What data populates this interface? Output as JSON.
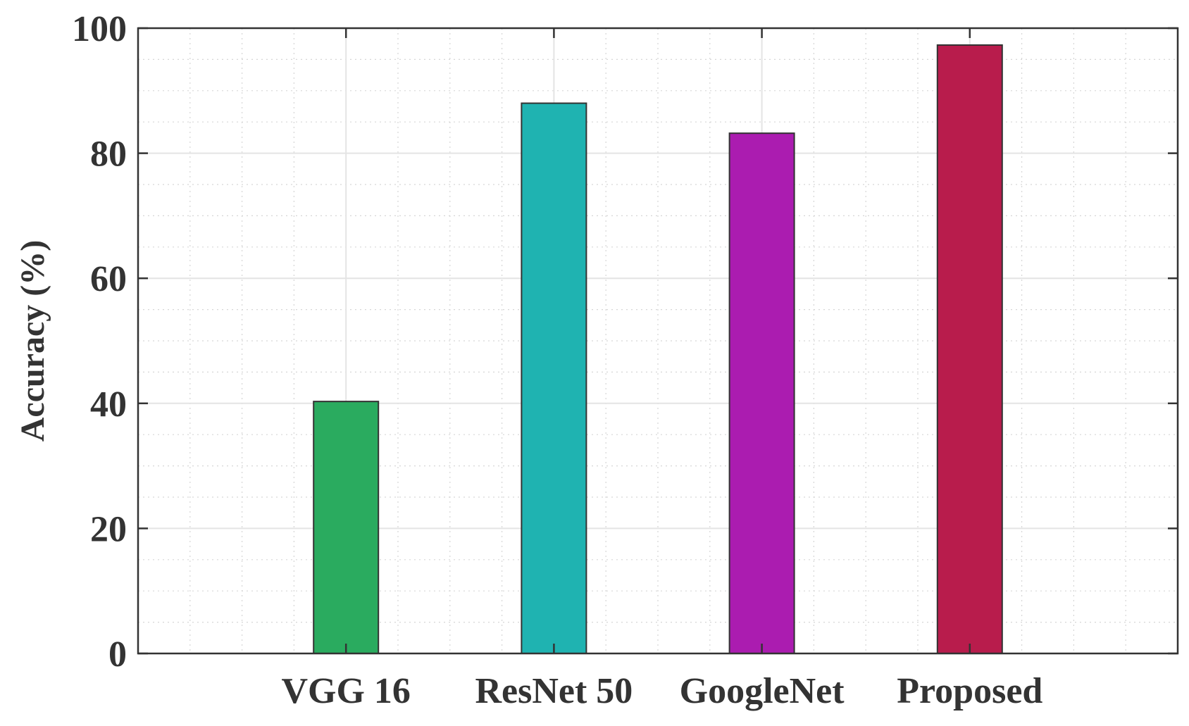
{
  "chart_data": {
    "type": "bar",
    "title": "",
    "xlabel": "",
    "ylabel": "Accuracy (%)",
    "categories": [
      "VGG 16",
      "ResNet 50",
      "GoogleNet",
      "Proposed"
    ],
    "values": [
      40.3,
      88.0,
      83.2,
      97.3
    ],
    "bar_colors": [
      "#2aab5f",
      "#1fb3b1",
      "#ab1cb0",
      "#b81c4c"
    ],
    "ylim": [
      0,
      100
    ],
    "yticks": [
      0,
      20,
      40,
      60,
      80,
      100
    ],
    "ytick_labels": [
      "0",
      "20",
      "40",
      "60",
      "80",
      "100"
    ],
    "grid": true,
    "minor_grid": true,
    "legend": "none"
  }
}
